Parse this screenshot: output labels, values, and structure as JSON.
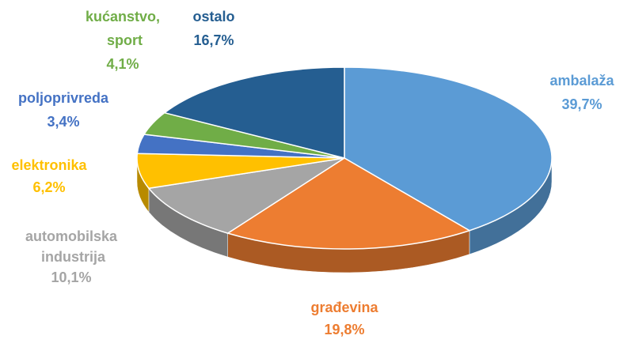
{
  "chart_data": {
    "type": "pie",
    "categories": [
      "ambalaža",
      "građevina",
      "automobilska industrija",
      "elektronika",
      "poljoprivreda",
      "kućanstvo, sport",
      "ostalo"
    ],
    "values": [
      39.7,
      19.8,
      10.1,
      6.2,
      3.4,
      4.1,
      16.7
    ],
    "value_labels": [
      "39,7%",
      "19,8%",
      "10,1%",
      "6,2%",
      "3,4%",
      "4,1%",
      "16,7%"
    ],
    "colors": [
      "#5b9bd5",
      "#ed7d31",
      "#a5a5a5",
      "#ffc000",
      "#4472c4",
      "#70ad47",
      "#255e91"
    ]
  }
}
